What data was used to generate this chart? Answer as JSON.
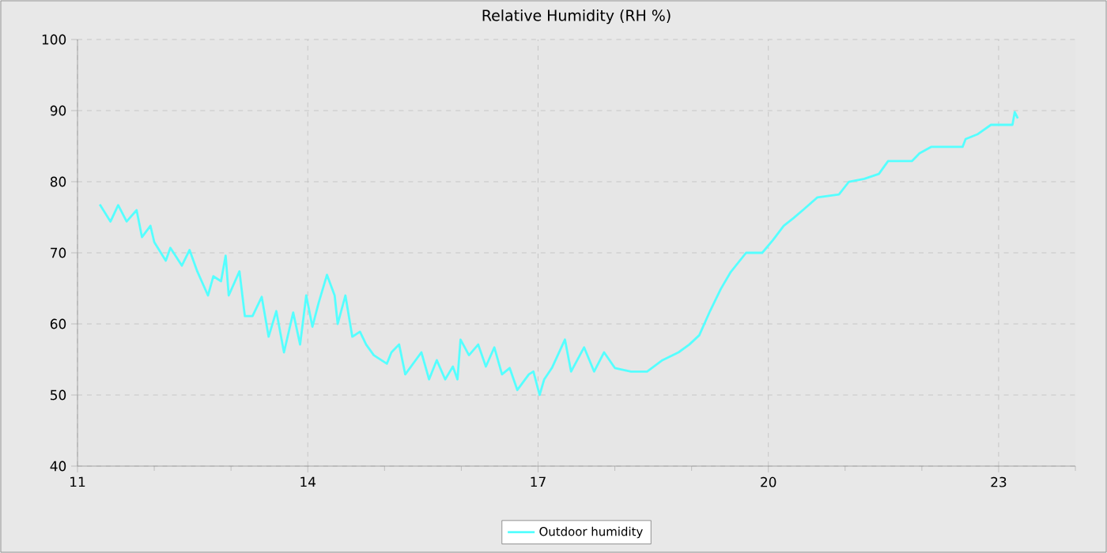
{
  "chart_data": {
    "type": "line",
    "title": "Relative Humidity (RH %)",
    "xlim": [
      11,
      24
    ],
    "ylim": [
      40,
      100
    ],
    "xticks": [
      11,
      {
        "value": 12,
        "label": null
      },
      {
        "value": 13,
        "label": null
      },
      14,
      {
        "value": 15,
        "label": null
      },
      {
        "value": 16,
        "label": null
      },
      17,
      {
        "value": 18,
        "label": null
      },
      {
        "value": 19,
        "label": null
      },
      20,
      {
        "value": 21,
        "label": null
      },
      {
        "value": 22,
        "label": null
      },
      23,
      {
        "value": 24,
        "label": null
      }
    ],
    "yticks": [
      40,
      50,
      60,
      70,
      80,
      90,
      100
    ],
    "grid": true,
    "legend": "bottom",
    "marker": "none",
    "line_style": "solid",
    "series": [
      {
        "name": "Outdoor humidity",
        "color": "#55ffff",
        "x": [
          11.29,
          11.43,
          11.53,
          11.64,
          11.77,
          11.84,
          11.95,
          12.0,
          12.15,
          12.21,
          12.36,
          12.46,
          12.56,
          12.7,
          12.77,
          12.87,
          12.93,
          12.97,
          13.11,
          13.18,
          13.28,
          13.4,
          13.49,
          13.59,
          13.69,
          13.81,
          13.9,
          13.98,
          14.06,
          14.14,
          14.25,
          14.35,
          14.39,
          14.49,
          14.58,
          14.68,
          14.76,
          14.86,
          15.03,
          15.09,
          15.19,
          15.27,
          15.48,
          15.58,
          15.68,
          15.79,
          15.89,
          15.95,
          15.99,
          16.1,
          16.22,
          16.32,
          16.43,
          16.53,
          16.63,
          16.73,
          16.88,
          16.94,
          17.02,
          17.08,
          17.18,
          17.35,
          17.43,
          17.6,
          17.73,
          17.86,
          18.0,
          18.21,
          18.42,
          18.62,
          18.83,
          18.97,
          19.1,
          19.24,
          19.38,
          19.51,
          19.71,
          19.92,
          20.06,
          20.2,
          20.33,
          20.47,
          20.64,
          20.92,
          21.05,
          21.25,
          21.44,
          21.56,
          21.87,
          21.97,
          22.12,
          22.53,
          22.57,
          22.73,
          22.9,
          23.18,
          23.21,
          23.25
        ],
        "values": [
          76.8,
          74.4,
          76.7,
          74.4,
          76,
          72.2,
          73.8,
          71.5,
          68.9,
          70.7,
          68.2,
          70.4,
          67.4,
          64,
          66.7,
          66,
          69.6,
          64,
          67.4,
          61.1,
          61.1,
          63.8,
          58.2,
          61.8,
          56,
          61.6,
          57.1,
          64,
          59.6,
          62.9,
          66.9,
          64,
          60,
          64,
          58.2,
          58.9,
          57.1,
          55.6,
          54.4,
          56,
          57.1,
          52.9,
          56,
          52.2,
          54.9,
          52.2,
          54,
          52.2,
          57.8,
          55.6,
          57.1,
          54,
          56.7,
          52.9,
          53.8,
          50.7,
          52.9,
          53.3,
          50,
          52.2,
          53.8,
          57.8,
          53.3,
          56.7,
          53.3,
          56,
          53.8,
          53.3,
          53.3,
          54.9,
          56,
          57.1,
          58.4,
          61.8,
          64.9,
          67.3,
          70,
          70,
          71.8,
          73.8,
          74.9,
          76.2,
          77.8,
          78.2,
          80,
          80.4,
          81.1,
          82.9,
          82.9,
          84,
          84.9,
          84.9,
          86,
          86.7,
          88,
          88,
          89.8,
          88.9
        ]
      }
    ]
  }
}
